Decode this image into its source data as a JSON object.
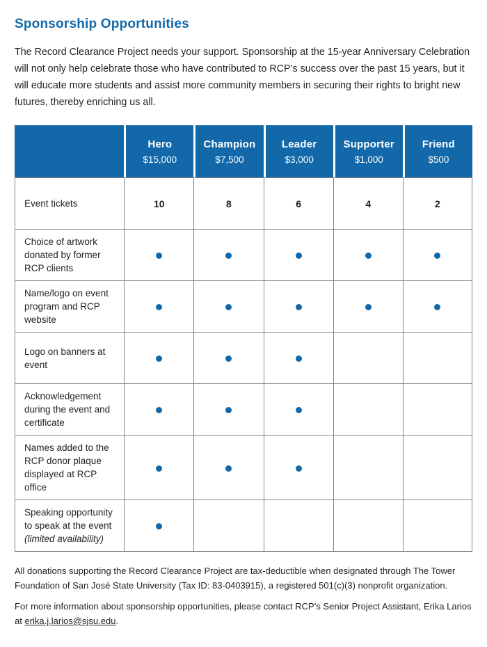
{
  "page": {
    "title": "Sponsorship Opportunities",
    "intro": "The Record Clearance Project needs your support. Sponsorship at the 15-year Anniversary Celebration will not only help celebrate those who have contributed to RCP’s success over the past 15 years, but it will educate more students and assist more community members in securing their rights to bright new futures, thereby enriching us all."
  },
  "colors": {
    "brand_blue": "#1268a9",
    "text": "#231f20",
    "table_border": "#848484"
  },
  "table": {
    "tiers": [
      {
        "name": "Hero",
        "price": "$15,000"
      },
      {
        "name": "Champion",
        "price": "$7,500"
      },
      {
        "name": "Leader",
        "price": "$3,000"
      },
      {
        "name": "Supporter",
        "price": "$1,000"
      },
      {
        "name": "Friend",
        "price": "$500"
      }
    ],
    "rows": [
      {
        "label": "Event tickets",
        "note": "",
        "type": "numbers",
        "values": [
          "10",
          "8",
          "6",
          "4",
          "2"
        ]
      },
      {
        "label": "Choice of artwork donated by former RCP clients",
        "note": "",
        "type": "dots",
        "values": [
          true,
          true,
          true,
          true,
          true
        ]
      },
      {
        "label": "Name/logo on event program and RCP website",
        "note": "",
        "type": "dots",
        "values": [
          true,
          true,
          true,
          true,
          true
        ]
      },
      {
        "label": "Logo on banners at event",
        "note": "",
        "type": "dots",
        "values": [
          true,
          true,
          true,
          false,
          false
        ]
      },
      {
        "label": "Acknowledgement during the event and certificate",
        "note": "",
        "type": "dots",
        "values": [
          true,
          true,
          true,
          false,
          false
        ]
      },
      {
        "label": "Names added to the RCP donor plaque displayed at RCP office",
        "note": "",
        "type": "dots",
        "values": [
          true,
          true,
          true,
          false,
          false
        ]
      },
      {
        "label": "Speaking opportunity to speak at the event",
        "note": "(limited availability)",
        "type": "dots",
        "values": [
          true,
          false,
          false,
          false,
          false
        ]
      }
    ]
  },
  "footer": {
    "tax_note": "All donations supporting the Record Clearance Project are tax-deductible when designated through The Tower Foundation of San José State University (Tax ID: 83-0403915), a registered 501(c)(3) nonprofit organization.",
    "contact_prefix": "For more information about sponsorship opportunities, please contact RCP’s Senior Project Assistant, Erika Larios at ",
    "contact_email": "erika.j.larios@sjsu.edu",
    "contact_suffix": "."
  }
}
